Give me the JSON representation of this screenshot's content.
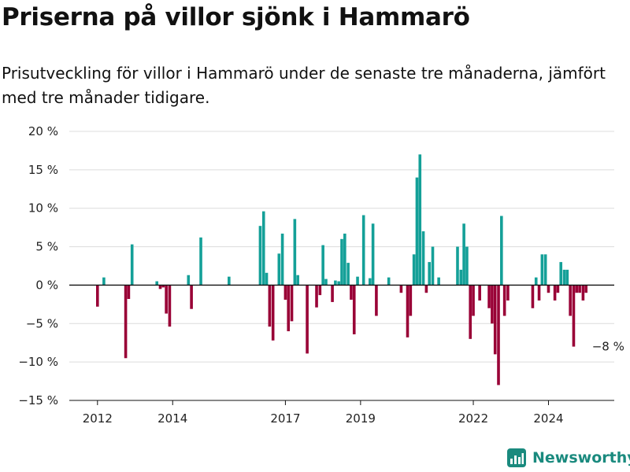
{
  "title": "Priserna på villor sjönk i Hammarö",
  "subtitle": "Prisutveckling för villor i Hammarö under de senaste tre månaderna, jämfört med tre månader tidigare.",
  "brand": "Newsworthy",
  "chart_data": {
    "type": "bar",
    "title": "Priserna på villor sjönk i Hammarö",
    "subtitle": "Prisutveckling för villor i Hammarö under de senaste tre månaderna, jämfört med tre månader tidigare.",
    "xlabel": "",
    "ylabel": "",
    "ylim": [
      -15,
      20
    ],
    "y_ticks": [
      20,
      15,
      10,
      5,
      0,
      -5,
      -10,
      -15
    ],
    "y_tick_labels": [
      "20 %",
      "15 %",
      "10 %",
      "5 %",
      "0 %",
      "−5 %",
      "−10 %",
      "−15 %"
    ],
    "x_range": [
      2011.25,
      2025.75
    ],
    "x_ticks": [
      2012,
      2014,
      2017,
      2019,
      2022,
      2024
    ],
    "x_tick_labels": [
      "2012",
      "2014",
      "2017",
      "2019",
      "2022",
      "2024"
    ],
    "grid": true,
    "positive_color": "#14a098",
    "negative_color": "#990036",
    "annotation": {
      "x": 2025.17,
      "y": -8,
      "label": "−8 %"
    },
    "x": [
      2012.0,
      2012.17,
      2012.75,
      2012.83,
      2012.92,
      2013.58,
      2013.67,
      2013.75,
      2013.83,
      2013.92,
      2014.42,
      2014.5,
      2014.75,
      2015.5,
      2016.33,
      2016.42,
      2016.5,
      2016.58,
      2016.67,
      2016.83,
      2016.92,
      2017.0,
      2017.08,
      2017.17,
      2017.25,
      2017.33,
      2017.58,
      2017.83,
      2017.92,
      2018.0,
      2018.08,
      2018.25,
      2018.33,
      2018.42,
      2018.5,
      2018.58,
      2018.67,
      2018.75,
      2018.83,
      2018.92,
      2019.08,
      2019.25,
      2019.33,
      2019.42,
      2019.75,
      2020.08,
      2020.25,
      2020.33,
      2020.42,
      2020.5,
      2020.58,
      2020.67,
      2020.75,
      2020.83,
      2020.92,
      2021.08,
      2021.58,
      2021.67,
      2021.75,
      2021.83,
      2021.92,
      2022.0,
      2022.17,
      2022.42,
      2022.5,
      2022.58,
      2022.67,
      2022.75,
      2022.83,
      2022.92,
      2023.58,
      2023.67,
      2023.75,
      2023.83,
      2023.92,
      2024.0,
      2024.17,
      2024.25,
      2024.33,
      2024.42,
      2024.5,
      2024.58,
      2024.67,
      2024.75,
      2024.83,
      2024.92,
      2025.0
    ],
    "values": [
      -2.8,
      1.0,
      -9.5,
      -1.8,
      5.3,
      0.5,
      -0.5,
      -0.3,
      -3.7,
      -5.4,
      1.3,
      -3.1,
      6.2,
      1.1,
      7.7,
      9.6,
      1.6,
      -5.4,
      -7.2,
      4.1,
      6.7,
      -1.9,
      -6.0,
      -4.7,
      8.6,
      1.3,
      -8.9,
      -2.9,
      -1.3,
      5.2,
      0.8,
      -2.2,
      0.6,
      0.5,
      6.0,
      6.7,
      2.9,
      -1.9,
      -6.4,
      1.1,
      9.1,
      0.9,
      8.0,
      -4.0,
      1.0,
      -1.0,
      -6.8,
      -4.0,
      4.0,
      14.0,
      17.0,
      7.0,
      -1.0,
      3.0,
      5.0,
      1.0,
      5.0,
      2.0,
      8.0,
      5.0,
      -7.0,
      -4.0,
      -2.0,
      -3.0,
      -5.0,
      -9.0,
      -13.0,
      9.0,
      -4.0,
      -2.0,
      -3.0,
      1.0,
      -2.0,
      4.0,
      4.0,
      -1.0,
      -2.0,
      -1.0,
      3.0,
      2.0,
      2.0,
      -4.0,
      -8.0,
      -1.0,
      -1.0,
      -2.0,
      -1.0
    ]
  }
}
